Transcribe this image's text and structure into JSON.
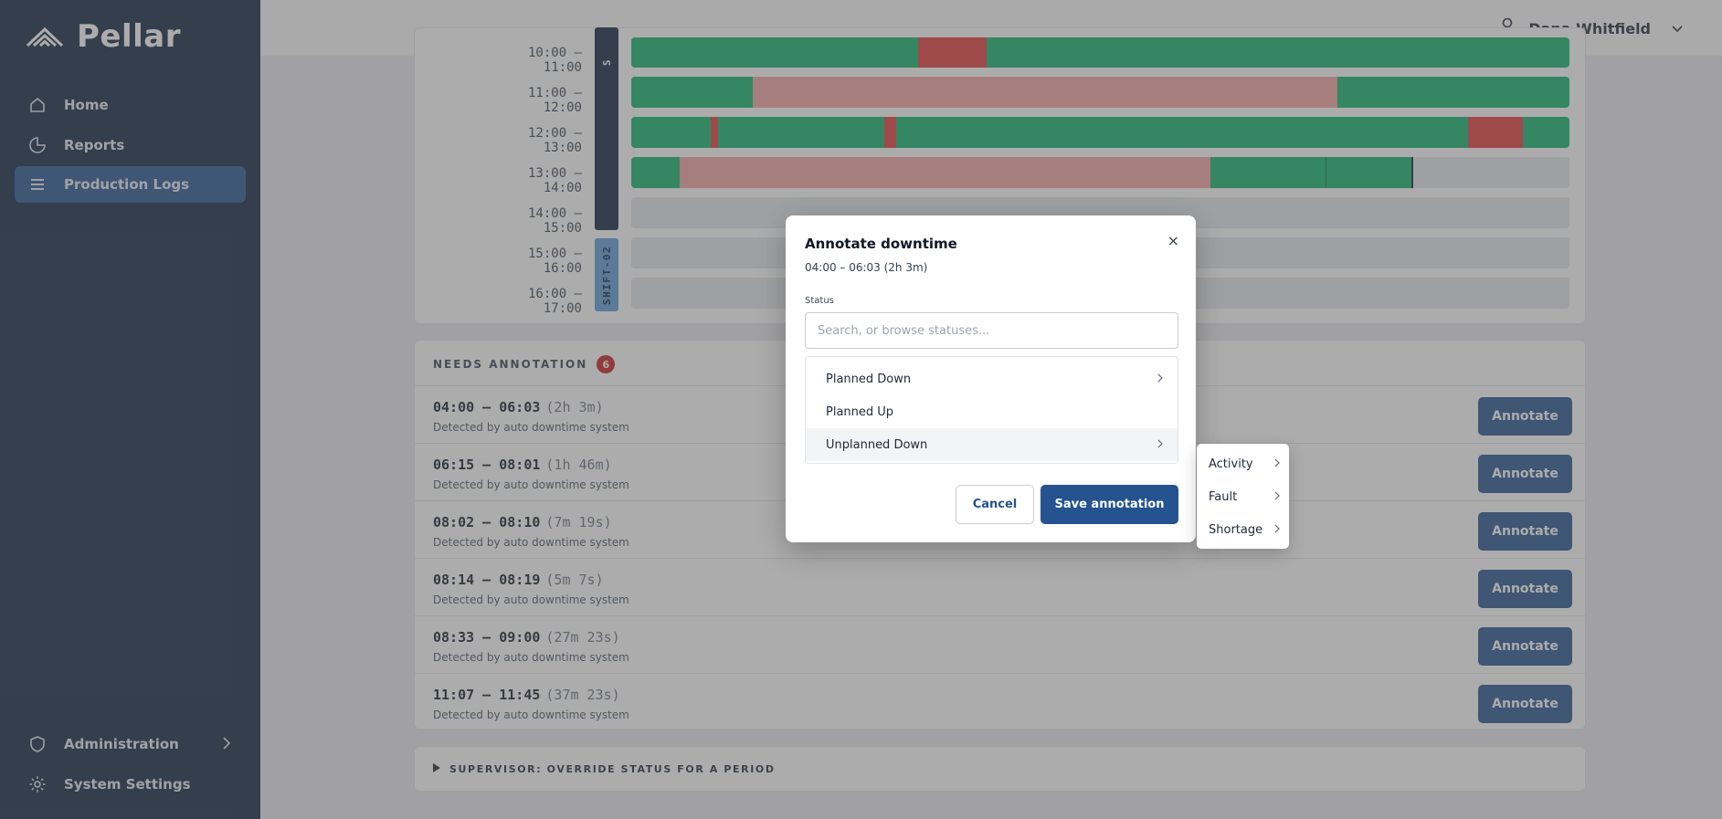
{
  "app": {
    "name": "Pellar"
  },
  "sidebar": {
    "items": [
      {
        "label": "Home",
        "icon": "home-icon"
      },
      {
        "label": "Reports",
        "icon": "reports-icon"
      },
      {
        "label": "Production Logs",
        "icon": "list-icon",
        "active": true
      }
    ],
    "bottom_items": [
      {
        "label": "Administration",
        "icon": "shield-icon"
      },
      {
        "label": "System Settings",
        "icon": "gear-icon"
      }
    ]
  },
  "header": {
    "user_name": "Dana Whitfield"
  },
  "timeline": {
    "rows": [
      {
        "label": "10:00 – 11:00"
      },
      {
        "label": "11:00 – 12:00"
      },
      {
        "label": "12:00 – 13:00"
      },
      {
        "label": "13:00 – 14:00"
      },
      {
        "label": "14:00 – 15:00"
      },
      {
        "label": "15:00 – 16:00"
      },
      {
        "label": "16:00 – 17:00"
      }
    ],
    "shifts": [
      {
        "label": "S"
      },
      {
        "label": "SHIFT-02"
      }
    ],
    "colors": {
      "up": "#10b36b",
      "down": "#e43a3a",
      "unannotated": "#f4a3a3",
      "empty": "#e5e7eb"
    }
  },
  "annotations": {
    "title": "NEEDS ANNOTATION",
    "count": "6",
    "button_label": "Annotate",
    "items": [
      {
        "time": "04:00 – 06:03",
        "duration": "(2h 3m)",
        "source": "Detected by auto downtime system"
      },
      {
        "time": "06:15 – 08:01",
        "duration": "(1h 46m)",
        "source": "Detected by auto downtime system"
      },
      {
        "time": "08:02 – 08:10",
        "duration": "(7m 19s)",
        "source": "Detected by auto downtime system"
      },
      {
        "time": "08:14 – 08:19",
        "duration": "(5m 7s)",
        "source": "Detected by auto downtime system"
      },
      {
        "time": "08:33 – 09:00",
        "duration": "(27m 23s)",
        "source": "Detected by auto downtime system"
      },
      {
        "time": "11:07 – 11:45",
        "duration": "(37m 23s)",
        "source": "Detected by auto downtime system"
      }
    ]
  },
  "supervisor": {
    "label": "SUPERVISOR: OVERRIDE STATUS FOR A PERIOD"
  },
  "modal": {
    "title": "Annotate downtime",
    "subtitle": "04:00 – 06:03 (2h 3m)",
    "status_label": "Status",
    "search_placeholder": "Search, or browse statuses...",
    "search_value": "",
    "options": [
      {
        "label": "Planned Down",
        "has_children": true
      },
      {
        "label": "Planned Up",
        "has_children": false
      },
      {
        "label": "Unplanned Down",
        "has_children": true,
        "highlighted": true
      }
    ],
    "submenu": [
      {
        "label": "Activity"
      },
      {
        "label": "Fault"
      },
      {
        "label": "Shortage"
      }
    ],
    "cancel_label": "Cancel",
    "save_label": "Save annotation",
    "close_glyph": "×"
  }
}
